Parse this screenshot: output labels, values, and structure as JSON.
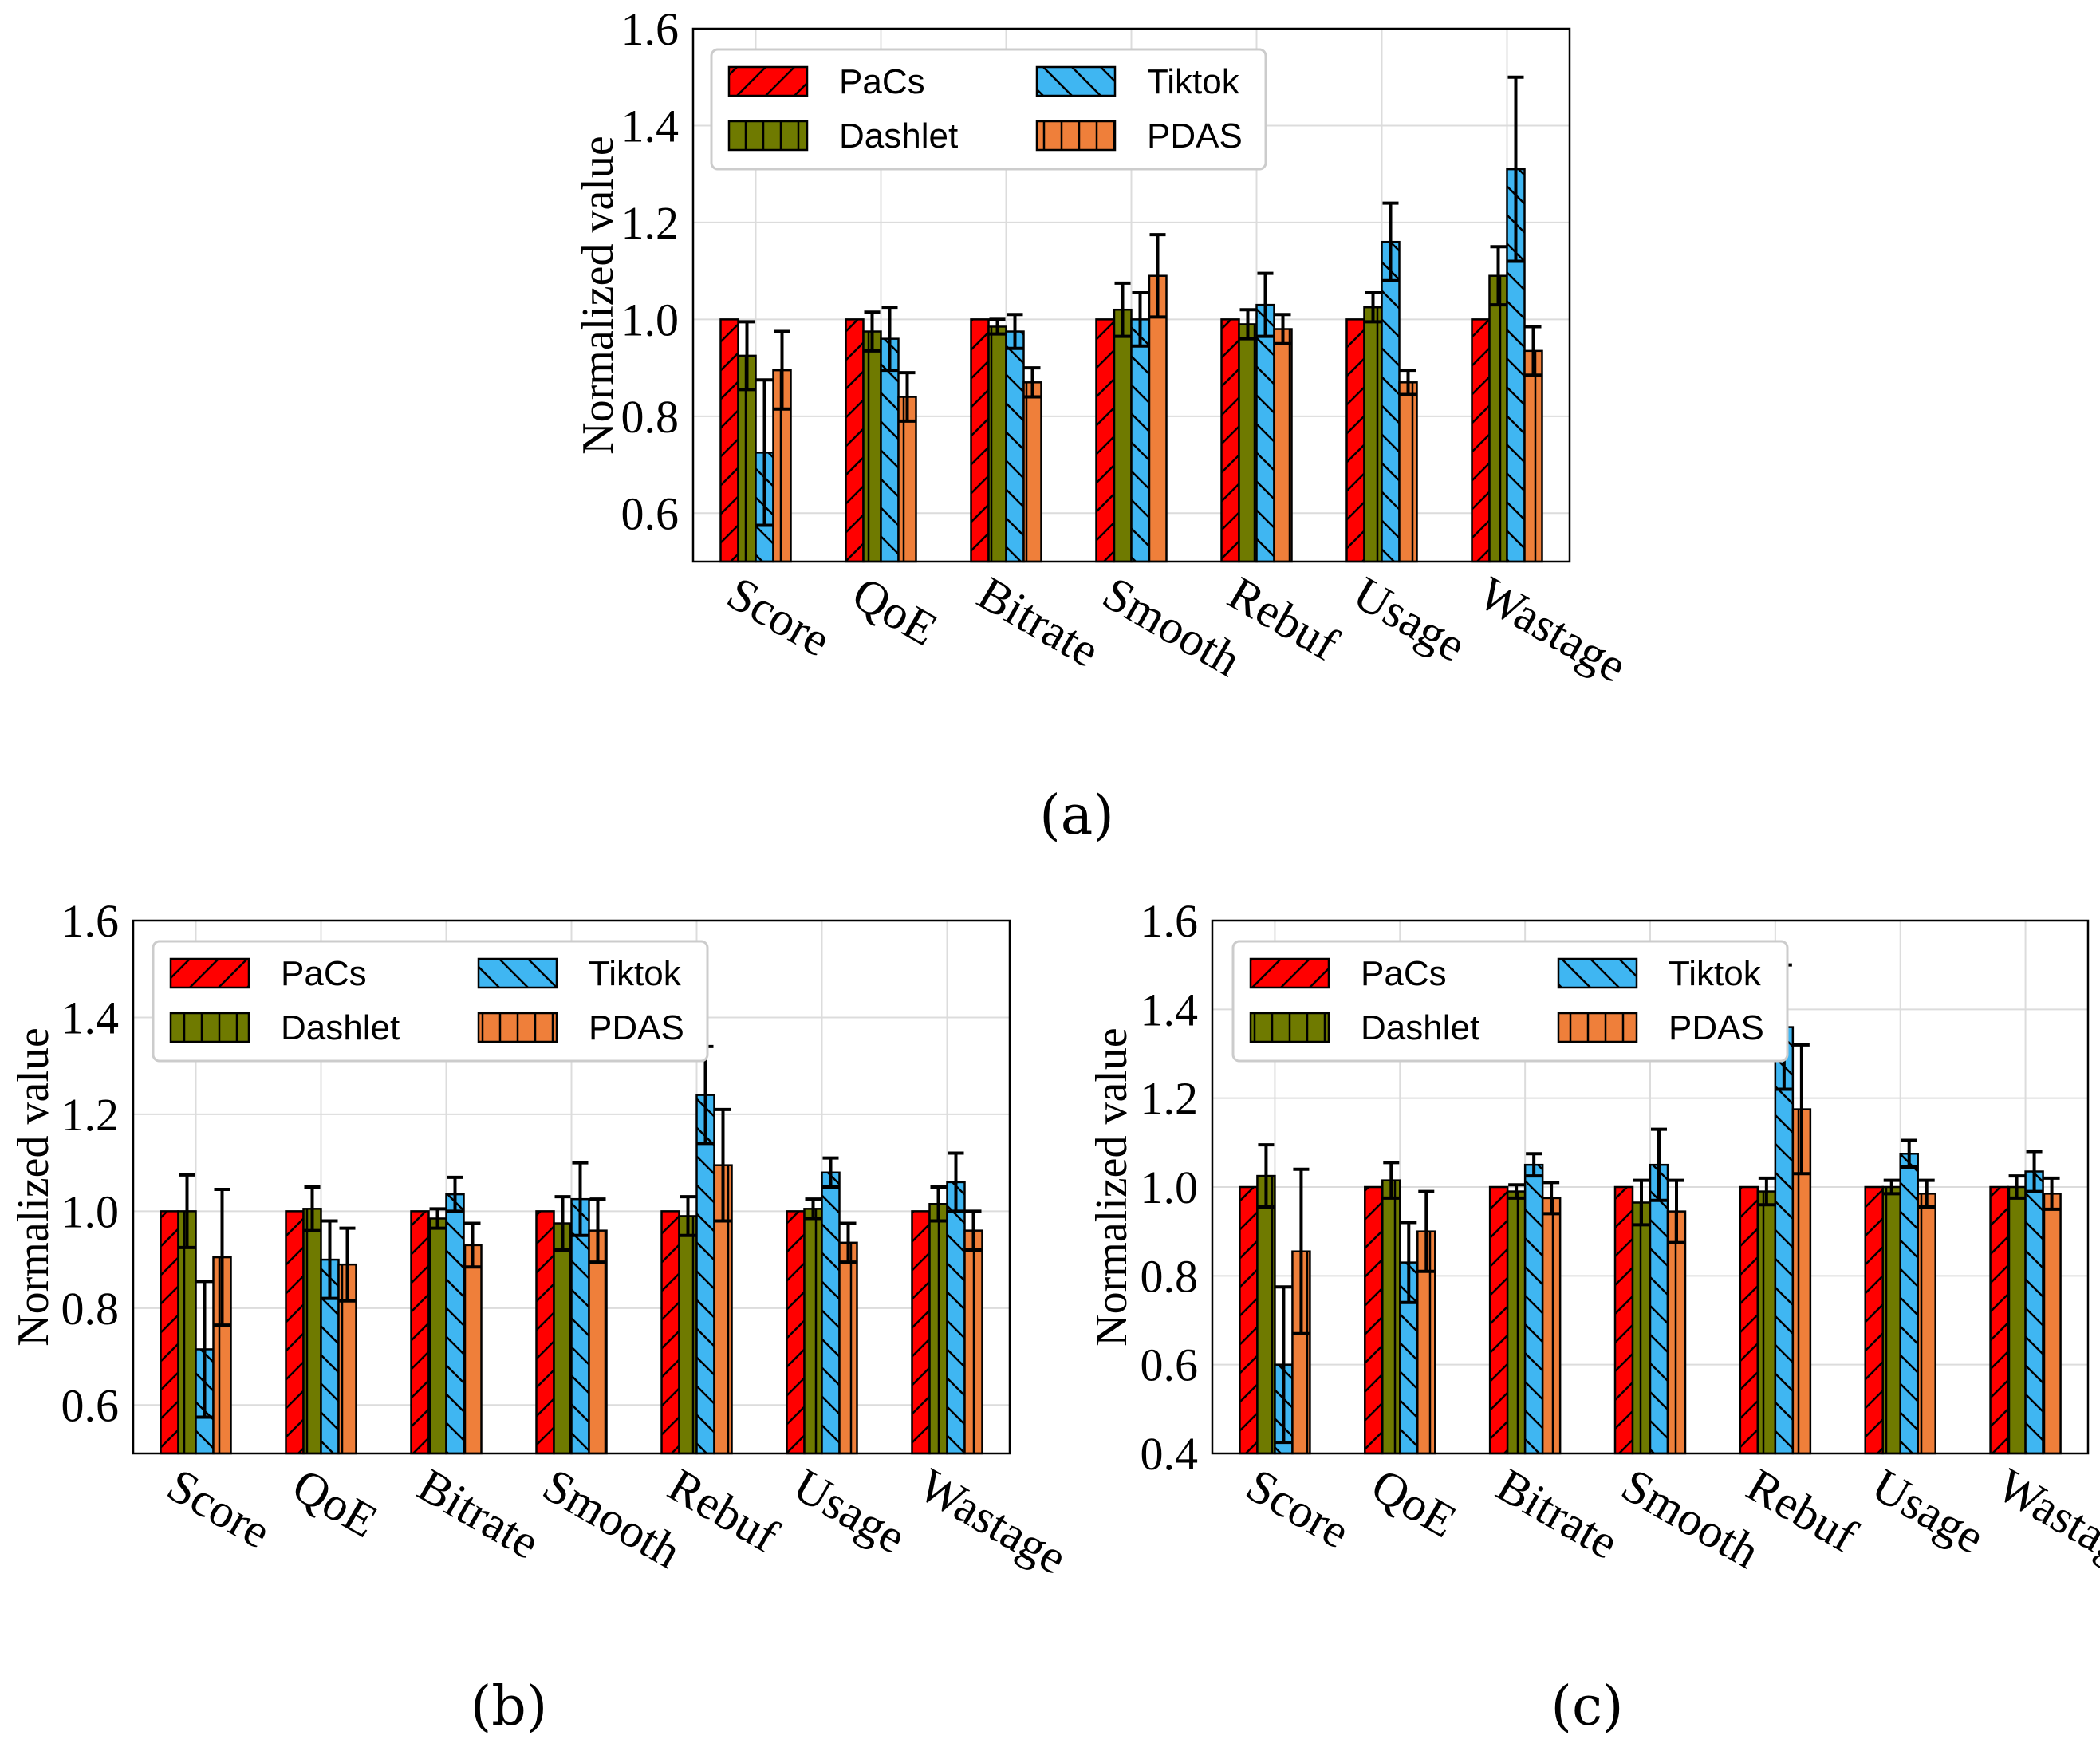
{
  "colors": {
    "PaCs": "#ff0000",
    "Dashlet": "#6f7a00",
    "Tiktok": "#3fb6f2",
    "PDAS": "#ef7f3a"
  },
  "chart_data": [
    {
      "type": "bar",
      "caption": "(a)",
      "ylabel": "Normalized value",
      "ylim": [
        0.5,
        1.6
      ],
      "yticks": [
        "0.6",
        "0.8",
        "1.0",
        "1.2",
        "1.4",
        "1.6"
      ],
      "grid": true,
      "legend_position": "top-left",
      "categories": [
        "Score",
        "QoE",
        "Bitrate",
        "Smooth",
        "Rebuf",
        "Usage",
        "Wastage"
      ],
      "series": [
        {
          "name": "PaCs",
          "values": [
            1.0,
            1.0,
            1.0,
            1.0,
            1.0,
            1.0,
            1.0
          ],
          "errors": [
            0,
            0,
            0,
            0,
            0,
            0,
            0
          ]
        },
        {
          "name": "Dashlet",
          "values": [
            0.925,
            0.975,
            0.985,
            1.02,
            0.99,
            1.025,
            1.09
          ],
          "errors": [
            0.07,
            0.04,
            0.015,
            0.055,
            0.03,
            0.03,
            0.06
          ]
        },
        {
          "name": "Tiktok",
          "values": [
            0.725,
            0.96,
            0.975,
            1.0,
            1.03,
            1.16,
            1.31
          ],
          "errors": [
            0.15,
            0.065,
            0.035,
            0.055,
            0.065,
            0.08,
            0.19
          ]
        },
        {
          "name": "PDAS",
          "values": [
            0.895,
            0.84,
            0.87,
            1.09,
            0.98,
            0.87,
            0.935
          ],
          "errors": [
            0.08,
            0.05,
            0.03,
            0.085,
            0.03,
            0.025,
            0.05
          ]
        }
      ]
    },
    {
      "type": "bar",
      "caption": "(b)",
      "ylabel": "Normalized value",
      "ylim": [
        0.5,
        1.6
      ],
      "yticks": [
        "0.6",
        "0.8",
        "1.0",
        "1.2",
        "1.4",
        "1.6"
      ],
      "grid": true,
      "legend_position": "top-left",
      "categories": [
        "Score",
        "QoE",
        "Bitrate",
        "Smooth",
        "Rebuf",
        "Usage",
        "Wastage"
      ],
      "series": [
        {
          "name": "PaCs",
          "values": [
            1.0,
            1.0,
            1.0,
            1.0,
            1.0,
            1.0,
            1.0
          ],
          "errors": [
            0,
            0,
            0,
            0,
            0,
            0,
            0
          ]
        },
        {
          "name": "Dashlet",
          "values": [
            1.0,
            1.005,
            0.985,
            0.975,
            0.99,
            1.005,
            1.015
          ],
          "errors": [
            0.075,
            0.045,
            0.02,
            0.055,
            0.04,
            0.02,
            0.035
          ]
        },
        {
          "name": "Tiktok",
          "values": [
            0.715,
            0.9,
            1.035,
            1.025,
            1.24,
            1.08,
            1.06
          ],
          "errors": [
            0.14,
            0.08,
            0.035,
            0.075,
            0.1,
            0.03,
            0.06
          ]
        },
        {
          "name": "PDAS",
          "values": [
            0.905,
            0.89,
            0.93,
            0.96,
            1.095,
            0.935,
            0.96
          ],
          "errors": [
            0.14,
            0.075,
            0.045,
            0.065,
            0.115,
            0.04,
            0.04
          ]
        }
      ]
    },
    {
      "type": "bar",
      "caption": "(c)",
      "ylabel": "Normalized value",
      "ylim": [
        0.4,
        1.6
      ],
      "yticks": [
        "0.4",
        "0.6",
        "0.8",
        "1.0",
        "1.2",
        "1.4",
        "1.6"
      ],
      "grid": true,
      "legend_position": "top-left",
      "categories": [
        "Score",
        "QoE",
        "Bitrate",
        "Smooth",
        "Rebuf",
        "Usage",
        "Wastage"
      ],
      "series": [
        {
          "name": "PaCs",
          "values": [
            1.0,
            1.0,
            1.0,
            1.0,
            1.0,
            1.0,
            1.0
          ],
          "errors": [
            0,
            0,
            0,
            0,
            0,
            0,
            0
          ]
        },
        {
          "name": "Dashlet",
          "values": [
            1.025,
            1.015,
            0.99,
            0.965,
            0.99,
            1.0,
            1.0
          ],
          "errors": [
            0.07,
            0.04,
            0.015,
            0.05,
            0.03,
            0.015,
            0.025
          ]
        },
        {
          "name": "Tiktok",
          "values": [
            0.6,
            0.83,
            1.05,
            1.05,
            1.36,
            1.075,
            1.035
          ],
          "errors": [
            0.175,
            0.09,
            0.025,
            0.08,
            0.14,
            0.03,
            0.045
          ]
        },
        {
          "name": "PDAS",
          "values": [
            0.855,
            0.9,
            0.975,
            0.945,
            1.175,
            0.985,
            0.985
          ],
          "errors": [
            0.185,
            0.09,
            0.035,
            0.07,
            0.145,
            0.03,
            0.035
          ]
        }
      ]
    }
  ]
}
